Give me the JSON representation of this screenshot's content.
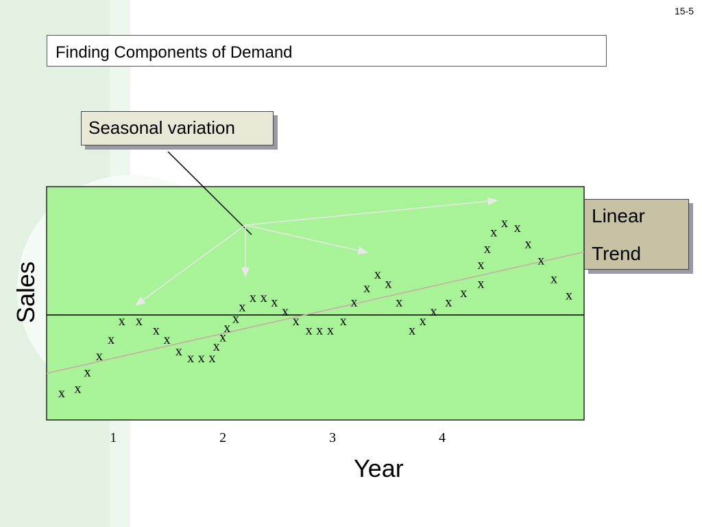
{
  "slide_number": "15-5",
  "title": "Finding Components of Demand",
  "callouts": {
    "seasonal": "Seasonal variation",
    "trend_line1": "Linear",
    "trend_line2": "Trend"
  },
  "colors": {
    "plot_background": "#a8f398",
    "trend_line": "#c8a8a8",
    "arrow": "#e8e8e8",
    "callout_fill": "#e9e7d6",
    "trend_callout_fill": "#c6c2a3"
  },
  "chart_data": {
    "type": "scatter",
    "title": "",
    "xlabel": "Year",
    "ylabel": "Sales",
    "xlim": [
      0.0,
      5.0
    ],
    "ylim": [
      0.0,
      10.0
    ],
    "x_ticks": [
      {
        "value": 1,
        "label": "1"
      },
      {
        "value": 2,
        "label": "2"
      },
      {
        "value": 3,
        "label": "3"
      },
      {
        "value": 4,
        "label": "4"
      }
    ],
    "marker_label": "x",
    "baseline_y": 4.5,
    "trend": {
      "x": [
        0.0,
        5.0
      ],
      "y": [
        2.0,
        7.2
      ]
    },
    "points": [
      {
        "x": 0.14,
        "y": 1.1
      },
      {
        "x": 0.29,
        "y": 1.3
      },
      {
        "x": 0.38,
        "y": 2.0
      },
      {
        "x": 0.49,
        "y": 2.7
      },
      {
        "x": 0.6,
        "y": 3.4
      },
      {
        "x": 0.7,
        "y": 4.2
      },
      {
        "x": 0.86,
        "y": 4.2
      },
      {
        "x": 1.02,
        "y": 3.8
      },
      {
        "x": 1.12,
        "y": 3.4
      },
      {
        "x": 1.23,
        "y": 2.9
      },
      {
        "x": 1.34,
        "y": 2.6
      },
      {
        "x": 1.44,
        "y": 2.6
      },
      {
        "x": 1.54,
        "y": 2.6
      },
      {
        "x": 1.58,
        "y": 3.1
      },
      {
        "x": 1.64,
        "y": 3.5
      },
      {
        "x": 1.68,
        "y": 3.9
      },
      {
        "x": 1.76,
        "y": 4.3
      },
      {
        "x": 1.82,
        "y": 4.8
      },
      {
        "x": 1.92,
        "y": 5.2
      },
      {
        "x": 2.02,
        "y": 5.2
      },
      {
        "x": 2.12,
        "y": 5.0
      },
      {
        "x": 2.22,
        "y": 4.6
      },
      {
        "x": 2.32,
        "y": 4.2
      },
      {
        "x": 2.44,
        "y": 3.8
      },
      {
        "x": 2.54,
        "y": 3.8
      },
      {
        "x": 2.64,
        "y": 3.8
      },
      {
        "x": 2.76,
        "y": 4.2
      },
      {
        "x": 2.86,
        "y": 5.0
      },
      {
        "x": 2.98,
        "y": 5.6
      },
      {
        "x": 3.08,
        "y": 6.2
      },
      {
        "x": 3.18,
        "y": 5.8
      },
      {
        "x": 3.28,
        "y": 5.0
      },
      {
        "x": 3.4,
        "y": 3.8
      },
      {
        "x": 3.5,
        "y": 4.2
      },
      {
        "x": 3.6,
        "y": 4.6
      },
      {
        "x": 3.74,
        "y": 5.0
      },
      {
        "x": 3.88,
        "y": 5.4
      },
      {
        "x": 4.04,
        "y": 5.8
      },
      {
        "x": 4.04,
        "y": 6.6
      },
      {
        "x": 4.1,
        "y": 7.3
      },
      {
        "x": 4.16,
        "y": 8.0
      },
      {
        "x": 4.26,
        "y": 8.4
      },
      {
        "x": 4.38,
        "y": 8.2
      },
      {
        "x": 4.48,
        "y": 7.5
      },
      {
        "x": 4.6,
        "y": 6.8
      },
      {
        "x": 4.72,
        "y": 6.0
      },
      {
        "x": 4.86,
        "y": 5.3
      }
    ]
  }
}
